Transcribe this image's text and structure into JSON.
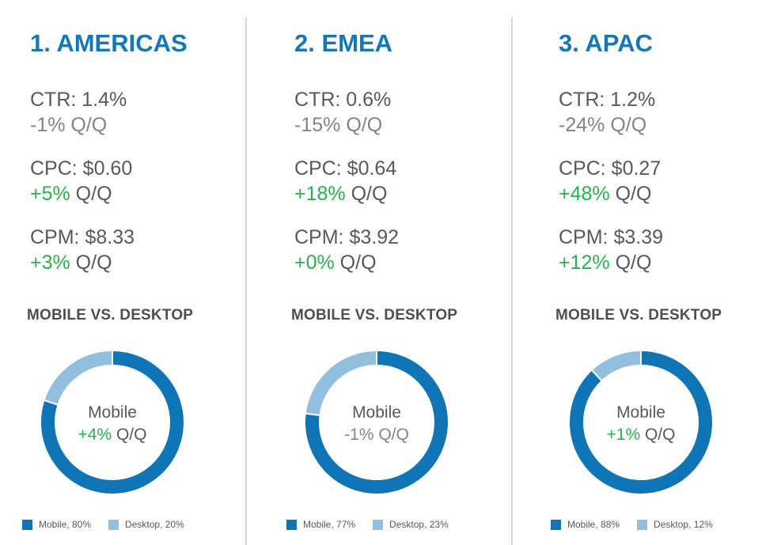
{
  "colors": {
    "title": "#1377b8",
    "mobile": "#0f75b6",
    "desktop": "#93bfdf",
    "positive": "#28b34a",
    "negative": "#7e858c",
    "text": "#555a5e"
  },
  "chart_data": [
    {
      "type": "pie",
      "title": "1. AMERICAS",
      "metrics": [
        {
          "label": "CTR: 1.4%",
          "change": "-1%",
          "suffix": " Q/Q",
          "direction": "negative"
        },
        {
          "label": "CPC: $0.60",
          "change": "+5%",
          "suffix": " Q/Q",
          "direction": "positive"
        },
        {
          "label": "CPM: $8.33",
          "change": "+3%",
          "suffix": " Q/Q",
          "direction": "positive"
        }
      ],
      "subtitle": "MOBILE VS. DESKTOP",
      "center_label": "Mobile",
      "center_change": "+4%",
      "center_suffix": " Q/Q",
      "center_direction": "positive",
      "categories": [
        "Mobile",
        "Desktop"
      ],
      "values": [
        80,
        20
      ],
      "legend": [
        "Mobile, 80%",
        "Desktop, 20%"
      ],
      "legend_position": "bottom"
    },
    {
      "type": "pie",
      "title": "2. EMEA",
      "metrics": [
        {
          "label": "CTR: 0.6%",
          "change": "-15%",
          "suffix": " Q/Q",
          "direction": "negative"
        },
        {
          "label": "CPC: $0.64",
          "change": "+18%",
          "suffix": " Q/Q",
          "direction": "positive"
        },
        {
          "label": "CPM: $3.92",
          "change": "+0%",
          "suffix": " Q/Q",
          "direction": "positive"
        }
      ],
      "subtitle": "MOBILE VS. DESKTOP",
      "center_label": "Mobile",
      "center_change": "-1%",
      "center_suffix": " Q/Q",
      "center_direction": "negative",
      "categories": [
        "Mobile",
        "Desktop"
      ],
      "values": [
        77,
        23
      ],
      "legend": [
        "Mobile, 77%",
        "Desktop, 23%"
      ],
      "legend_position": "bottom"
    },
    {
      "type": "pie",
      "title": "3. APAC",
      "metrics": [
        {
          "label": "CTR: 1.2%",
          "change": "-24%",
          "suffix": " Q/Q",
          "direction": "negative"
        },
        {
          "label": "CPC: $0.27",
          "change": "+48%",
          "suffix": " Q/Q",
          "direction": "positive"
        },
        {
          "label": "CPM: $3.39",
          "change": "+12%",
          "suffix": " Q/Q",
          "direction": "positive"
        }
      ],
      "subtitle": "MOBILE VS. DESKTOP",
      "center_label": "Mobile",
      "center_change": "+1%",
      "center_suffix": " Q/Q",
      "center_direction": "positive",
      "categories": [
        "Mobile",
        "Desktop"
      ],
      "values": [
        88,
        12
      ],
      "legend": [
        "Mobile, 88%",
        "Desktop, 12%"
      ],
      "legend_position": "bottom"
    }
  ]
}
